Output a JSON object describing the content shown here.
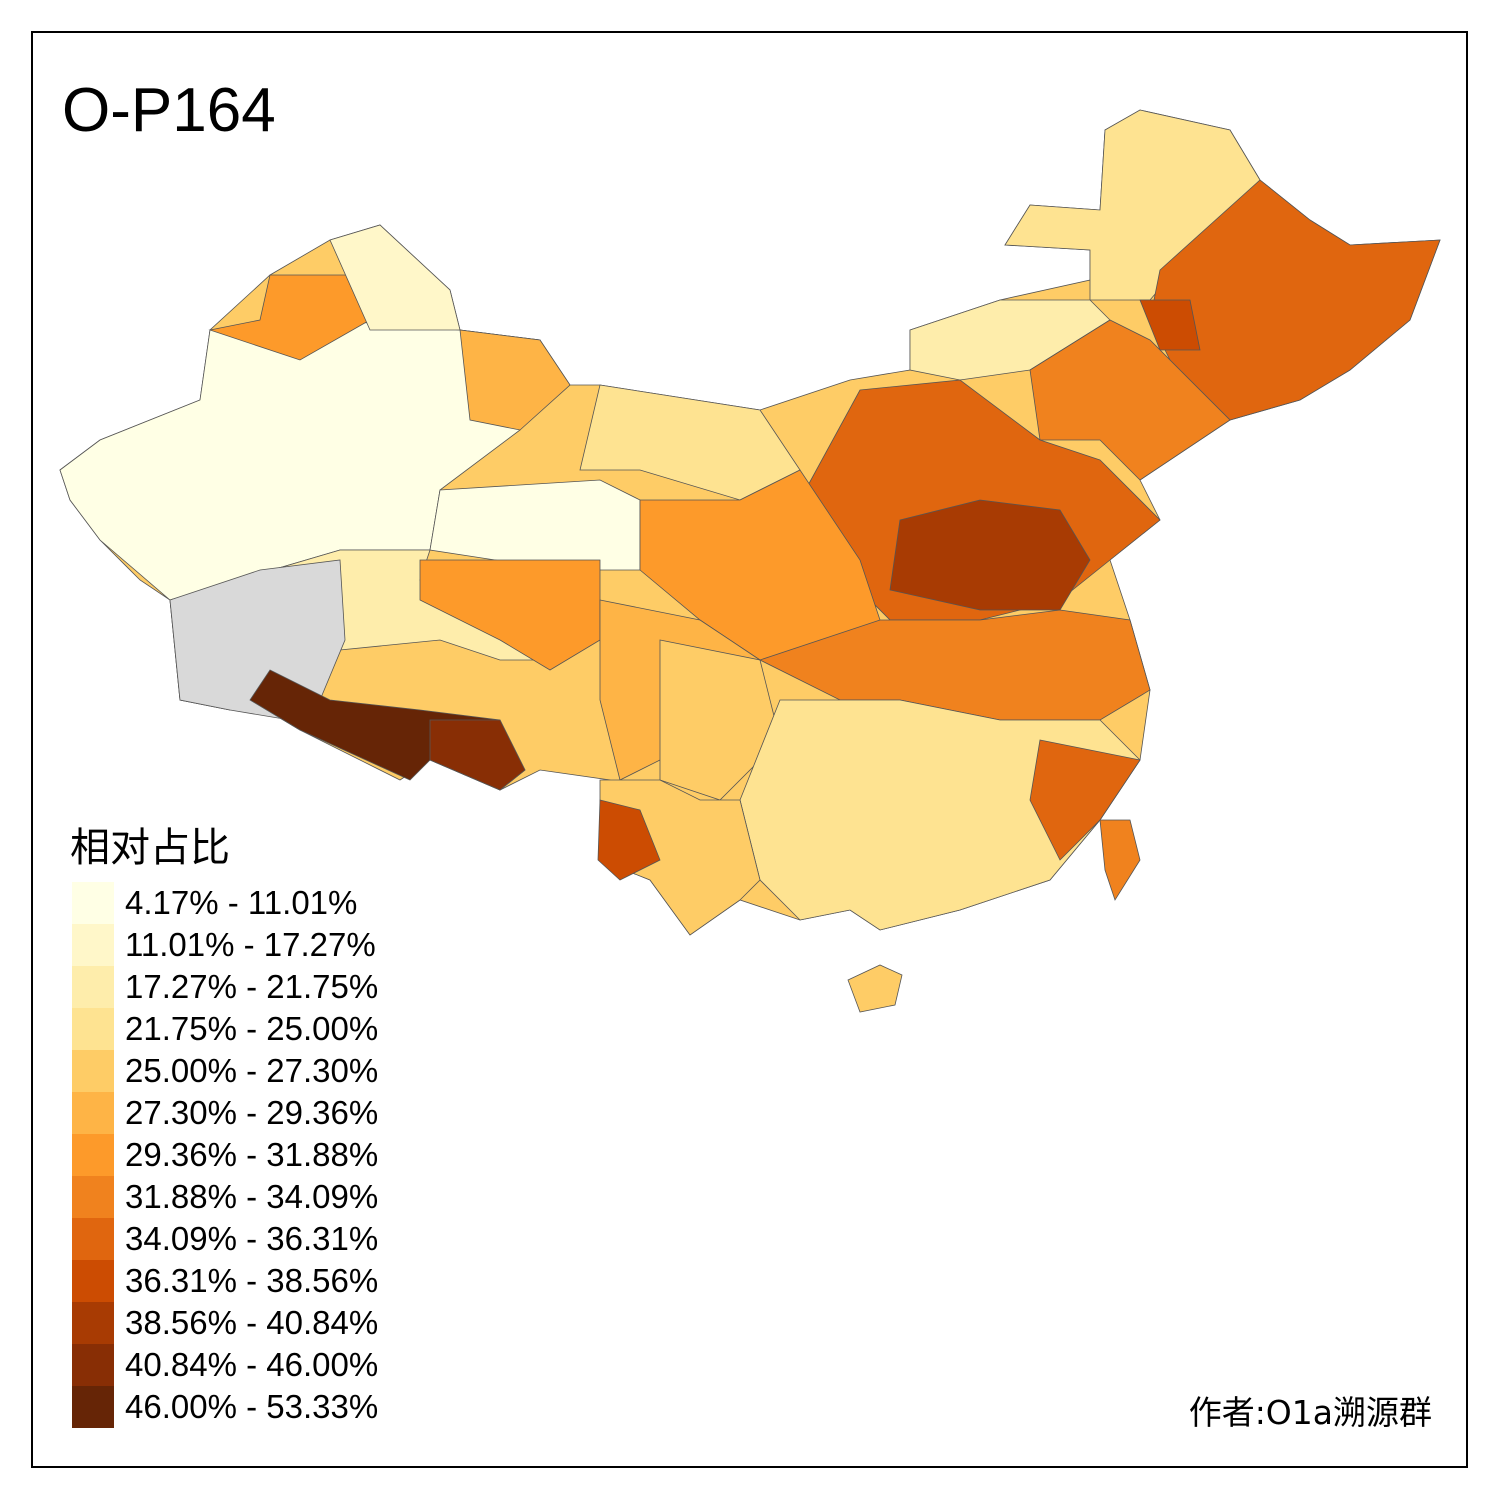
{
  "title": "O-P164",
  "legend": {
    "title": "相对占比",
    "classes": [
      {
        "label": "4.17% - 11.01%",
        "color": "#FFFFE5"
      },
      {
        "label": "11.01% - 17.27%",
        "color": "#FFF7C9"
      },
      {
        "label": "17.27% - 21.75%",
        "color": "#FEEDAB"
      },
      {
        "label": "21.75% - 25.00%",
        "color": "#FEE391"
      },
      {
        "label": "25.00% - 27.30%",
        "color": "#FECC66"
      },
      {
        "label": "27.30% - 29.36%",
        "color": "#FEB446"
      },
      {
        "label": "29.36% - 31.88%",
        "color": "#FD9A2A"
      },
      {
        "label": "31.88% - 34.09%",
        "color": "#F0821E"
      },
      {
        "label": "34.09% - 36.31%",
        "color": "#E0660F"
      },
      {
        "label": "36.31% - 38.56%",
        "color": "#CC4C02"
      },
      {
        "label": "38.56% - 40.84%",
        "color": "#A83B03"
      },
      {
        "label": "40.84% - 46.00%",
        "color": "#882E05"
      },
      {
        "label": "46.00% - 53.33%",
        "color": "#662506"
      }
    ],
    "no_data_color": "#D9D9D9"
  },
  "author": "作者:O1a溯源群"
}
